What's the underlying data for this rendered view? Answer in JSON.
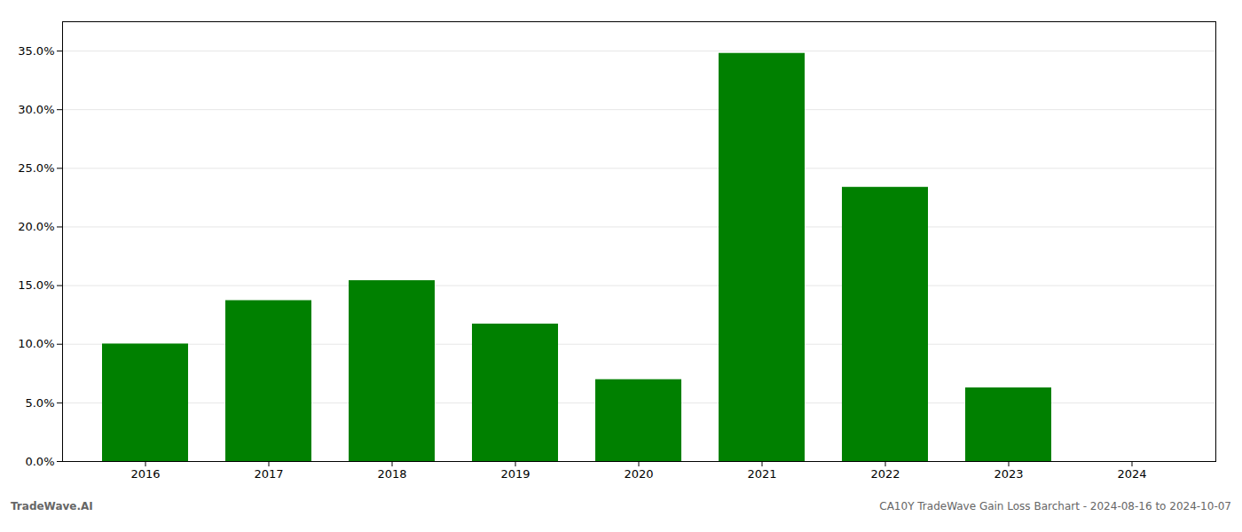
{
  "chart_data": {
    "type": "bar",
    "categories": [
      "2016",
      "2017",
      "2018",
      "2019",
      "2020",
      "2021",
      "2022",
      "2023",
      "2024"
    ],
    "values": [
      0.1002,
      0.1372,
      0.1542,
      0.1172,
      0.0698,
      0.348,
      0.2338,
      0.0628,
      0.0
    ],
    "color": "#008000",
    "ylim": [
      0,
      0.375
    ],
    "yticks": [
      {
        "value": 0.0,
        "label": "0.0%"
      },
      {
        "value": 0.05,
        "label": "5.0%"
      },
      {
        "value": 0.1,
        "label": "10.0%"
      },
      {
        "value": 0.15,
        "label": "15.0%"
      },
      {
        "value": 0.2,
        "label": "20.0%"
      },
      {
        "value": 0.25,
        "label": "25.0%"
      },
      {
        "value": 0.3,
        "label": "30.0%"
      },
      {
        "value": 0.35,
        "label": "35.0%"
      }
    ],
    "grid": true,
    "annotations": [
      "TradeWave.AI",
      "CA10Y TradeWave Gain Loss Barchart - 2024-08-16 to 2024-10-07"
    ]
  }
}
